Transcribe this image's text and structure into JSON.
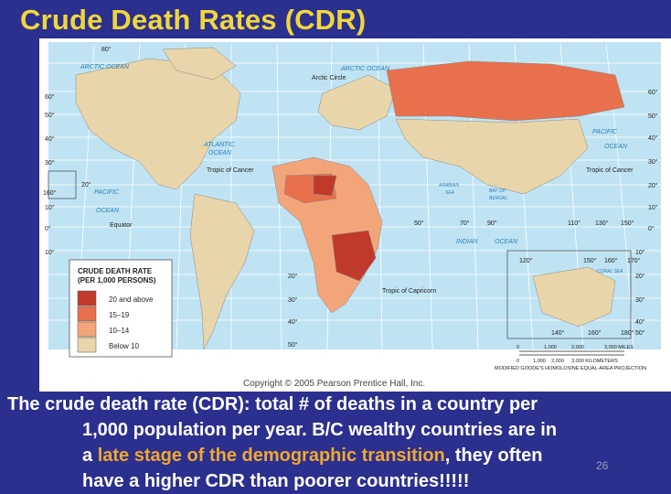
{
  "slide": {
    "title": "Crude Death Rates (CDR)",
    "body_line1": "The crude death rate (CDR):  total # of deaths in a country per",
    "body_line2": "1,000 population per year. B/C wealthy countries are in",
    "body_line3_pre": "a ",
    "body_line3_highlight": "late stage of the demographic transition",
    "body_line3_post": ", they often",
    "body_line4": "have a higher CDR than poorer countries!!!!!",
    "slide_number": "26"
  },
  "map": {
    "copyright": "Copyright © 2005 Pearson Prentice Hall, Inc.",
    "projection": "MODIFIED GOODE'S HOMOLOSINE EQUAL-AREA PROJECTION",
    "ocean_labels": {
      "arctic_left": "ARCTIC OCEAN",
      "arctic_right": "ARCTIC OCEAN",
      "atlantic": "ATLANTIC",
      "atlantic2": "OCEAN",
      "pacific_left": "PACIFIC",
      "pacific_left2": "OCEAN",
      "pacific_right": "PACIFIC",
      "pacific_right2": "OCEAN",
      "indian": "INDIAN",
      "indian2": "OCEAN",
      "arabian": "ARABIAN",
      "arabian2": "SEA",
      "bengal": "BAY OF",
      "bengal2": "BENGAL",
      "coral": "CORAL SEA"
    },
    "line_labels": {
      "arctic_circle": "Arctic Circle",
      "cancer_left": "Tropic of Cancer",
      "cancer_right": "Tropic of Cancer",
      "equator": "Equator",
      "capricorn": "Tropic of Capricorn"
    },
    "lat_labels_left": [
      "80°",
      "60°",
      "50°",
      "40°",
      "30°",
      "20°",
      "160°",
      "10°",
      "0°",
      "10°",
      "20°",
      "30°",
      "40°",
      "50°"
    ],
    "lat_labels_right": [
      "60°",
      "50°",
      "40°",
      "30°",
      "20°",
      "10°",
      "0°",
      "10°",
      "20°",
      "30°",
      "40°",
      "50°"
    ],
    "lon_labels_mid": [
      "50°",
      "70°",
      "90°",
      "110°",
      "130°",
      "150°"
    ],
    "lon_labels_inset": [
      "120°",
      "150°",
      "160°",
      "170°",
      "140°",
      "160°",
      "180°"
    ],
    "scale": {
      "miles": [
        "0",
        "1,000",
        "2,000",
        "3,000 MILES"
      ],
      "km": [
        "0",
        "1,000",
        "2,000",
        "3,000 KILOMETERS"
      ]
    },
    "legend": {
      "title1": "CRUDE DEATH RATE",
      "title2": "(PER 1,000 PERSONS)",
      "items": [
        {
          "label": "20 and above",
          "color": "#c0392b"
        },
        {
          "label": "15–19",
          "color": "#e8704c"
        },
        {
          "label": "10–14",
          "color": "#f3a57a"
        },
        {
          "label": "Below 10",
          "color": "#e9d5aa"
        }
      ]
    },
    "colors": {
      "ocean": "#bfe3f2",
      "grid": "#ffffff",
      "land_low": "#e9d5aa",
      "land_mid": "#f3a57a",
      "land_high": "#e8704c",
      "land_top": "#c0392b"
    }
  }
}
